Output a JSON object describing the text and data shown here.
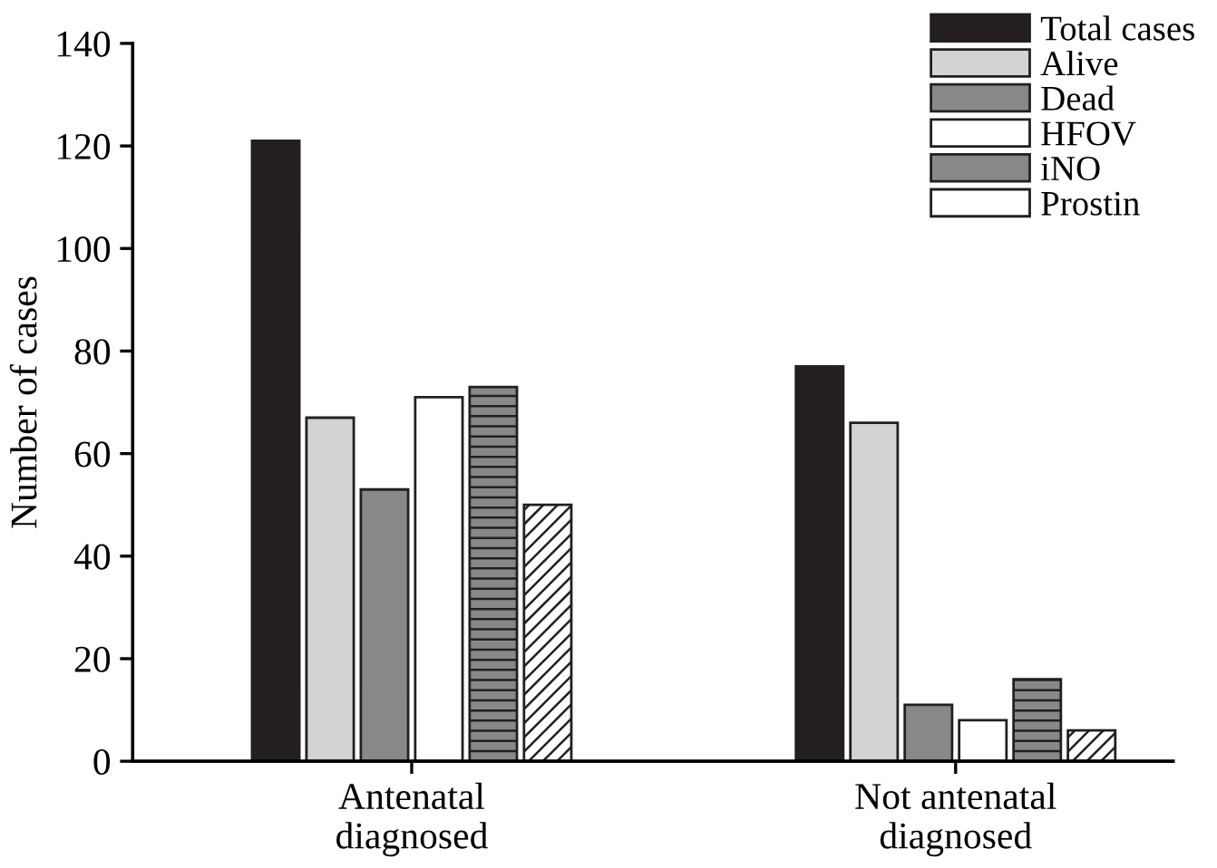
{
  "chart_data": {
    "type": "bar",
    "ylabel": "Number of cases",
    "categories": [
      "Antenatal\ndiagnosed",
      "Not antenatal\ndiagnosed"
    ],
    "series": [
      {
        "name": "Total cases",
        "color": "#231f20",
        "values": [
          121,
          77
        ]
      },
      {
        "name": "Alive",
        "color": "#d1d3d4",
        "values": [
          67,
          66
        ]
      },
      {
        "name": "Dead",
        "color": "#87888a",
        "values": [
          53,
          11
        ]
      },
      {
        "name": "HFOV",
        "color": "#ffffff",
        "values": [
          71,
          8
        ]
      },
      {
        "name": "iNO",
        "color": "#87888a",
        "values": [
          73,
          16
        ]
      },
      {
        "name": "Prostin",
        "color": "#ffffff",
        "values": [
          50,
          6
        ]
      }
    ],
    "ylim": [
      0,
      140
    ],
    "yticks": [
      0,
      20,
      40,
      60,
      80,
      100,
      120,
      140
    ],
    "grid": false,
    "legend": "top right"
  }
}
